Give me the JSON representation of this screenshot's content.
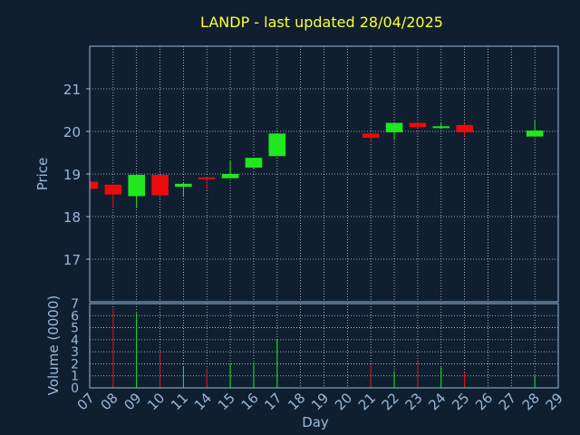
{
  "colors": {
    "background": "#0f1f30",
    "title": "#ffff33",
    "axis": "#9ab8d8",
    "grid": "#c8d4e0",
    "up": "#1fe81f",
    "down": "#ee0a0a"
  },
  "chart_data": {
    "type": "candlestick",
    "title": "LANDP - last updated 28/04/2025",
    "xlabel": "Day",
    "ylabel_price": "Price",
    "ylabel_volume": "Volume (0000)",
    "price_ylim": [
      16.0,
      22.0
    ],
    "price_ticks": [
      17,
      18,
      19,
      20,
      21
    ],
    "volume_ylim": [
      0,
      7
    ],
    "volume_ticks": [
      0,
      1,
      2,
      3,
      4,
      5,
      6,
      7
    ],
    "x_ticks": [
      "07",
      "08",
      "09",
      "10",
      "11",
      "14",
      "15",
      "16",
      "17",
      "18",
      "19",
      "20",
      "21",
      "22",
      "23",
      "24",
      "25",
      "26",
      "27",
      "28",
      "29"
    ],
    "grid": true,
    "series": [
      {
        "day": "07",
        "open": 18.82,
        "high": 18.82,
        "low": 18.62,
        "close": 18.65,
        "volume": 0
      },
      {
        "day": "08",
        "open": 18.75,
        "high": 18.75,
        "low": 18.22,
        "close": 18.52,
        "volume": 6.6
      },
      {
        "day": "09",
        "open": 18.48,
        "high": 19.0,
        "low": 18.2,
        "close": 18.98,
        "volume": 6.2
      },
      {
        "day": "10",
        "open": 18.98,
        "high": 18.98,
        "low": 18.48,
        "close": 18.5,
        "volume": 3.0
      },
      {
        "day": "11",
        "open": 18.7,
        "high": 18.8,
        "low": 18.48,
        "close": 18.77,
        "volume": 1.8
      },
      {
        "day": "14",
        "open": 18.92,
        "high": 18.92,
        "low": 18.62,
        "close": 18.88,
        "volume": 1.6
      },
      {
        "day": "15",
        "open": 18.9,
        "high": 19.32,
        "low": 18.9,
        "close": 19.0,
        "volume": 2.0
      },
      {
        "day": "16",
        "open": 19.15,
        "high": 19.38,
        "low": 19.12,
        "close": 19.38,
        "volume": 2.1
      },
      {
        "day": "17",
        "open": 19.42,
        "high": 19.95,
        "low": 19.42,
        "close": 19.95,
        "volume": 4.0
      },
      {
        "day": "21",
        "open": 19.95,
        "high": 19.95,
        "low": 19.75,
        "close": 19.85,
        "volume": 1.9
      },
      {
        "day": "22",
        "open": 19.98,
        "high": 20.2,
        "low": 19.8,
        "close": 20.2,
        "volume": 1.4
      },
      {
        "day": "23",
        "open": 20.2,
        "high": 20.2,
        "low": 20.08,
        "close": 20.1,
        "volume": 2.2
      },
      {
        "day": "24",
        "open": 20.08,
        "high": 20.2,
        "low": 20.05,
        "close": 20.12,
        "volume": 1.7
      },
      {
        "day": "25",
        "open": 20.15,
        "high": 20.2,
        "low": 19.88,
        "close": 19.98,
        "volume": 1.3
      },
      {
        "day": "28",
        "open": 19.88,
        "high": 20.25,
        "low": 19.88,
        "close": 20.02,
        "volume": 1.0
      }
    ]
  }
}
